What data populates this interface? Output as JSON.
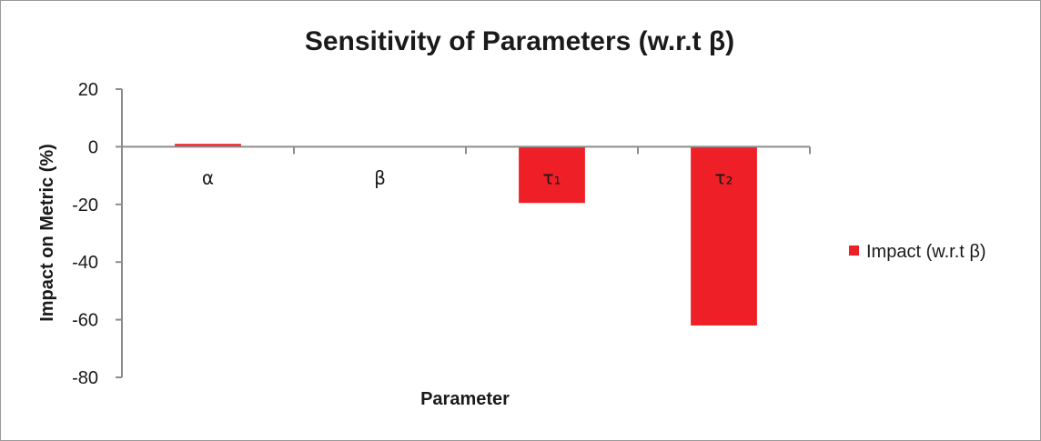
{
  "chart_data": {
    "type": "bar",
    "title": "Sensitivity of Parameters (w.r.t β)",
    "xlabel": "Parameter",
    "ylabel": "Impact on Metric (%)",
    "categories": [
      "α",
      "β",
      "τ₁",
      "τ₂"
    ],
    "series": [
      {
        "name": "Impact (w.r.t β)",
        "values": [
          1,
          0,
          -19.5,
          -62
        ],
        "color": "#ee1f27"
      }
    ],
    "ylim": [
      -80,
      20
    ],
    "yticks": [
      20,
      0,
      -20,
      -40,
      -60,
      -80
    ],
    "grid": false,
    "legend_position": "right"
  }
}
